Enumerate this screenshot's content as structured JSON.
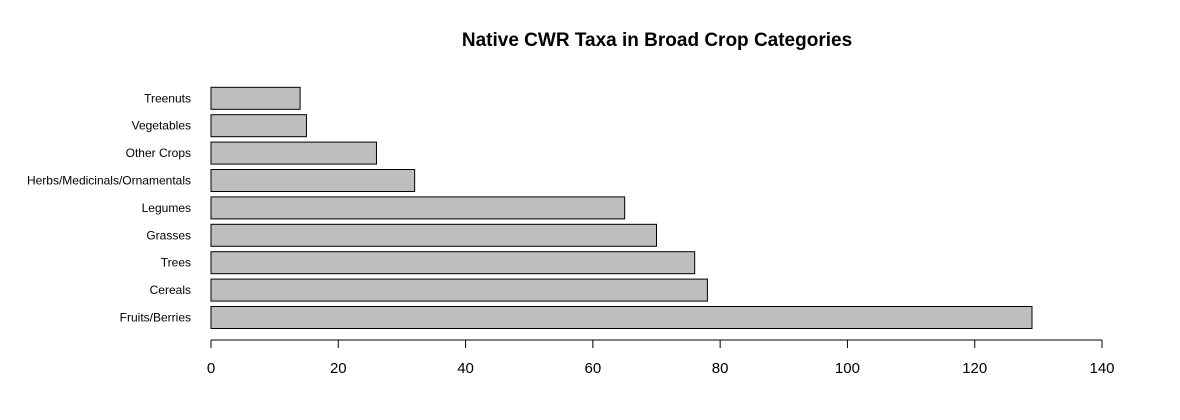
{
  "chart_data": {
    "type": "bar",
    "orientation": "horizontal",
    "title": "Native CWR Taxa in Broad Crop Categories",
    "xlabel": "",
    "ylabel": "",
    "categories": [
      "Fruits/Berries",
      "Cereals",
      "Trees",
      "Grasses",
      "Legumes",
      "Herbs/Medicinals/Ornamentals",
      "Other Crops",
      "Vegetables",
      "Treenuts"
    ],
    "values": [
      129,
      78,
      76,
      70,
      65,
      32,
      26,
      15,
      14
    ],
    "xlim": [
      0,
      140
    ],
    "xticks": [
      0,
      20,
      40,
      60,
      80,
      100,
      120,
      140
    ],
    "bar_color": "#bebebe",
    "bar_edge_color": "#000000",
    "grid": false,
    "legend": "none"
  }
}
